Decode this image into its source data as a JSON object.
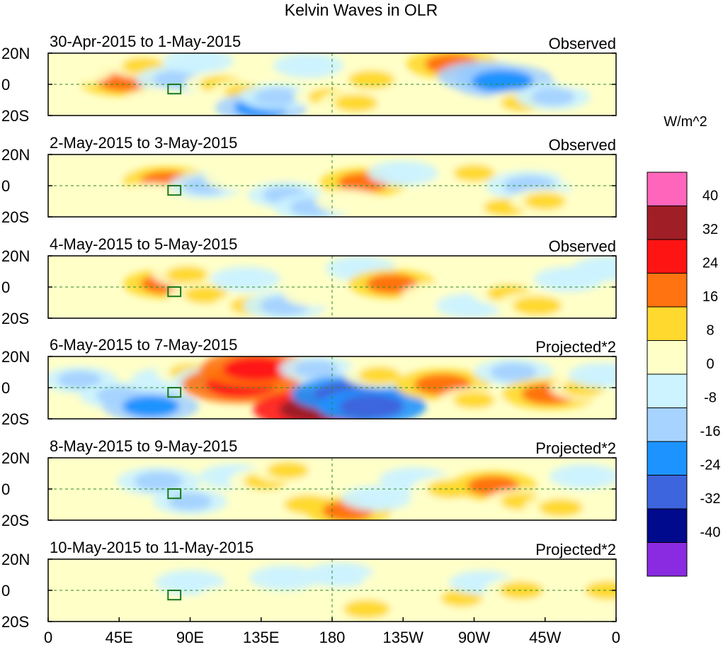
{
  "chart_data": {
    "type": "heatmap",
    "title": "Kelvin Waves in OLR",
    "xlabel": "",
    "ylabel": "",
    "lon_ticks": [
      "0",
      "45E",
      "90E",
      "135E",
      "180",
      "135W",
      "90W",
      "45W",
      "0"
    ],
    "lat_ticks": [
      "20N",
      "0",
      "20S"
    ],
    "xlim": [
      0,
      360
    ],
    "ylim": [
      -20,
      20
    ],
    "grid": false,
    "reference_lines": {
      "equator_lat": 0,
      "dateline_lon": 180
    },
    "marker_box": {
      "lon": [
        76,
        84
      ],
      "lat": [
        -6,
        0
      ]
    },
    "colorbar": {
      "label": "W/m^2",
      "tick_labels": [
        "40",
        "32",
        "24",
        "16",
        "8",
        "0",
        "-8",
        "-16",
        "-24",
        "-32",
        "-40"
      ],
      "colors": [
        "#ff66bb",
        "#a01e26",
        "#ff1414",
        "#ff7310",
        "#ffd92e",
        "#ffffc8",
        "#ccf3ff",
        "#a6d3ff",
        "#1d93ff",
        "#3d65dd",
        "#000a8c",
        "#8a2be2"
      ]
    },
    "panels": [
      {
        "date_range": "30-Apr-2015 to 1-May-2015",
        "kind": "Observed",
        "anomalies": [
          {
            "lon": 40,
            "lat": 5,
            "val": 10
          },
          {
            "lon": 48,
            "lat": 2,
            "val": 18
          },
          {
            "lon": 20,
            "lat": 8,
            "val": 6
          },
          {
            "lon": 60,
            "lat": 12,
            "val": 8
          },
          {
            "lon": 82,
            "lat": 3,
            "val": -14
          },
          {
            "lon": 70,
            "lat": -10,
            "val": 6
          },
          {
            "lon": 95,
            "lat": 15,
            "val": -8
          },
          {
            "lon": 110,
            "lat": 0,
            "val": 10
          },
          {
            "lon": 125,
            "lat": -5,
            "val": 8
          },
          {
            "lon": 135,
            "lat": -15,
            "val": -18
          },
          {
            "lon": 145,
            "lat": -8,
            "val": -10
          },
          {
            "lon": 165,
            "lat": 12,
            "val": -8
          },
          {
            "lon": 178,
            "lat": -8,
            "val": 8
          },
          {
            "lon": 195,
            "lat": -12,
            "val": 10
          },
          {
            "lon": 205,
            "lat": 3,
            "val": 12
          },
          {
            "lon": 238,
            "lat": -10,
            "val": 6
          },
          {
            "lon": 256,
            "lat": 13,
            "val": 18
          },
          {
            "lon": 276,
            "lat": 5,
            "val": -18
          },
          {
            "lon": 288,
            "lat": 2,
            "val": -24
          },
          {
            "lon": 300,
            "lat": -12,
            "val": 8
          },
          {
            "lon": 320,
            "lat": -8,
            "val": -10
          },
          {
            "lon": 340,
            "lat": 5,
            "val": 6
          }
        ]
      },
      {
        "date_range": "2-May-2015 to 3-May-2015",
        "kind": "Observed",
        "anomalies": [
          {
            "lon": 35,
            "lat": 8,
            "val": 6
          },
          {
            "lon": 75,
            "lat": 3,
            "val": 16
          },
          {
            "lon": 65,
            "lat": -6,
            "val": 6
          },
          {
            "lon": 100,
            "lat": 0,
            "val": -10
          },
          {
            "lon": 120,
            "lat": 5,
            "val": 6
          },
          {
            "lon": 150,
            "lat": -6,
            "val": -10
          },
          {
            "lon": 168,
            "lat": -14,
            "val": -12
          },
          {
            "lon": 200,
            "lat": 2,
            "val": 16
          },
          {
            "lon": 190,
            "lat": -10,
            "val": 6
          },
          {
            "lon": 225,
            "lat": 8,
            "val": -8
          },
          {
            "lon": 250,
            "lat": -8,
            "val": 6
          },
          {
            "lon": 270,
            "lat": 8,
            "val": 8
          },
          {
            "lon": 290,
            "lat": -14,
            "val": 10
          },
          {
            "lon": 305,
            "lat": 0,
            "val": -16
          },
          {
            "lon": 315,
            "lat": -10,
            "val": 8
          },
          {
            "lon": 345,
            "lat": 5,
            "val": 6
          }
        ]
      },
      {
        "date_range": "4-May-2015 to 5-May-2015",
        "kind": "Observed",
        "anomalies": [
          {
            "lon": 25,
            "lat": 0,
            "val": 6
          },
          {
            "lon": 75,
            "lat": 2,
            "val": 16
          },
          {
            "lon": 88,
            "lat": 8,
            "val": 8
          },
          {
            "lon": 100,
            "lat": -5,
            "val": 10
          },
          {
            "lon": 130,
            "lat": -12,
            "val": 12
          },
          {
            "lon": 125,
            "lat": 5,
            "val": -8
          },
          {
            "lon": 150,
            "lat": -12,
            "val": -14
          },
          {
            "lon": 170,
            "lat": -5,
            "val": 6
          },
          {
            "lon": 198,
            "lat": 12,
            "val": -8
          },
          {
            "lon": 218,
            "lat": 2,
            "val": 16
          },
          {
            "lon": 245,
            "lat": -5,
            "val": 6
          },
          {
            "lon": 268,
            "lat": -12,
            "val": -8
          },
          {
            "lon": 292,
            "lat": -4,
            "val": 10
          },
          {
            "lon": 310,
            "lat": -12,
            "val": 14
          },
          {
            "lon": 330,
            "lat": 5,
            "val": -8
          },
          {
            "lon": 355,
            "lat": 12,
            "val": -8
          }
        ]
      },
      {
        "date_range": "6-May-2015 to 7-May-2015",
        "kind": "Projected*2",
        "anomalies": [
          {
            "lon": 20,
            "lat": 5,
            "val": -10
          },
          {
            "lon": 45,
            "lat": -5,
            "val": -12
          },
          {
            "lon": 65,
            "lat": -12,
            "val": -20
          },
          {
            "lon": 75,
            "lat": 5,
            "val": -8
          },
          {
            "lon": 90,
            "lat": 10,
            "val": 8
          },
          {
            "lon": 105,
            "lat": 5,
            "val": -12
          },
          {
            "lon": 122,
            "lat": 2,
            "val": 30
          },
          {
            "lon": 132,
            "lat": 12,
            "val": 28
          },
          {
            "lon": 170,
            "lat": -14,
            "val": 34
          },
          {
            "lon": 170,
            "lat": 12,
            "val": -10
          },
          {
            "lon": 190,
            "lat": -4,
            "val": -28
          },
          {
            "lon": 205,
            "lat": -12,
            "val": -26
          },
          {
            "lon": 210,
            "lat": 8,
            "val": 8
          },
          {
            "lon": 250,
            "lat": 2,
            "val": 20
          },
          {
            "lon": 270,
            "lat": -8,
            "val": 8
          },
          {
            "lon": 295,
            "lat": 10,
            "val": -12
          },
          {
            "lon": 318,
            "lat": -4,
            "val": 20
          },
          {
            "lon": 340,
            "lat": 0,
            "val": 8
          },
          {
            "lon": 352,
            "lat": 8,
            "val": -8
          }
        ]
      },
      {
        "date_range": "8-May-2015 to 9-May-2015",
        "kind": "Projected*2",
        "anomalies": [
          {
            "lon": 20,
            "lat": 0,
            "val": 6
          },
          {
            "lon": 70,
            "lat": 5,
            "val": -14
          },
          {
            "lon": 90,
            "lat": -8,
            "val": -10
          },
          {
            "lon": 118,
            "lat": 8,
            "val": -8
          },
          {
            "lon": 138,
            "lat": 5,
            "val": 10
          },
          {
            "lon": 152,
            "lat": 12,
            "val": 8
          },
          {
            "lon": 165,
            "lat": -10,
            "val": 14
          },
          {
            "lon": 190,
            "lat": -14,
            "val": 16
          },
          {
            "lon": 208,
            "lat": -6,
            "val": -8
          },
          {
            "lon": 232,
            "lat": 6,
            "val": -8
          },
          {
            "lon": 255,
            "lat": 0,
            "val": 12
          },
          {
            "lon": 282,
            "lat": 2,
            "val": 16
          },
          {
            "lon": 300,
            "lat": -8,
            "val": 8
          },
          {
            "lon": 325,
            "lat": -12,
            "val": 10
          },
          {
            "lon": 340,
            "lat": 8,
            "val": -8
          }
        ]
      },
      {
        "date_range": "10-May-2015 to 11-May-2015",
        "kind": "Projected*2",
        "anomalies": [
          {
            "lon": 15,
            "lat": 5,
            "val": 6
          },
          {
            "lon": 65,
            "lat": -6,
            "val": 6
          },
          {
            "lon": 90,
            "lat": 5,
            "val": -8
          },
          {
            "lon": 115,
            "lat": -5,
            "val": 6
          },
          {
            "lon": 150,
            "lat": 8,
            "val": -8
          },
          {
            "lon": 185,
            "lat": 10,
            "val": -8
          },
          {
            "lon": 202,
            "lat": -12,
            "val": 12
          },
          {
            "lon": 220,
            "lat": 5,
            "val": 6
          },
          {
            "lon": 262,
            "lat": -5,
            "val": 8
          },
          {
            "lon": 275,
            "lat": 5,
            "val": -6
          },
          {
            "lon": 300,
            "lat": 0,
            "val": 10
          },
          {
            "lon": 320,
            "lat": -12,
            "val": 6
          },
          {
            "lon": 355,
            "lat": 0,
            "val": 12
          }
        ]
      }
    ]
  }
}
